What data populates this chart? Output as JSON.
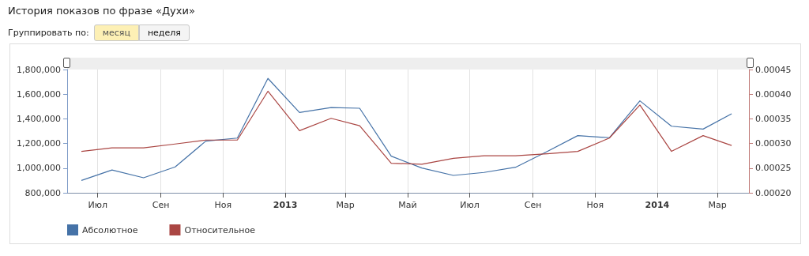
{
  "chart_data": {
    "type": "line",
    "title": "История показов по фразе «Духи»",
    "annotations": [
      "Группировать по:",
      "месяц",
      "неделя"
    ],
    "x": [
      "2012-06-15",
      "2012-07-15",
      "2012-08-15",
      "2012-09-15",
      "2012-10-15",
      "2012-11-15",
      "2012-12-15",
      "2013-01-15",
      "2013-02-15",
      "2013-03-15",
      "2013-04-15",
      "2013-05-15",
      "2013-06-15",
      "2013-07-15",
      "2013-08-15",
      "2013-09-15",
      "2013-10-15",
      "2013-11-15",
      "2013-12-15",
      "2014-01-15",
      "2014-02-15",
      "2014-03-15"
    ],
    "series": [
      {
        "name": "Абсолютное",
        "color": "#4572a7",
        "values": [
          900000,
          985000,
          922000,
          1010000,
          1219000,
          1244000,
          1728000,
          1452000,
          1492000,
          1486000,
          1097000,
          1001000,
          941000,
          965000,
          1007000,
          1135000,
          1264000,
          1247000,
          1546000,
          1340000,
          1317000,
          1441000
        ]
      },
      {
        "name": "Относительное",
        "color": "#aa4643",
        "axis": "y2",
        "values": [
          0.000284,
          0.000291,
          0.000291,
          0.000299,
          0.000307,
          0.000307,
          0.000406,
          0.000326,
          0.000351,
          0.000336,
          0.00026,
          0.000258,
          0.00027,
          0.000275,
          0.000275,
          0.000279,
          0.000284,
          0.000311,
          0.000378,
          0.000284,
          0.000316,
          0.000296
        ]
      }
    ],
    "xlim": [
      "2012-06-01",
      "2014-04-01"
    ],
    "xticks": [
      {
        "value": "2012-07-01",
        "label": "Июл"
      },
      {
        "value": "2012-09-01",
        "label": "Сен"
      },
      {
        "value": "2012-11-01",
        "label": "Ноя"
      },
      {
        "value": "2013-01-01",
        "label": "2013"
      },
      {
        "value": "2013-03-01",
        "label": "Мар"
      },
      {
        "value": "2013-05-01",
        "label": "Май"
      },
      {
        "value": "2013-07-01",
        "label": "Июл"
      },
      {
        "value": "2013-09-01",
        "label": "Сен"
      },
      {
        "value": "2013-11-01",
        "label": "Ноя"
      },
      {
        "value": "2014-01-01",
        "label": "2014"
      },
      {
        "value": "2014-03-01",
        "label": "Мар"
      }
    ],
    "ylim": [
      800000,
      1800000
    ],
    "yticks": [
      {
        "value": 800000,
        "label": "800,000"
      },
      {
        "value": 1000000,
        "label": "1,000,000"
      },
      {
        "value": 1200000,
        "label": "1,200,000"
      },
      {
        "value": 1400000,
        "label": "1,400,000"
      },
      {
        "value": 1600000,
        "label": "1,600,000"
      },
      {
        "value": 1800000,
        "label": "1,800,000"
      }
    ],
    "y2lim": [
      0.0002,
      0.00045
    ],
    "y2ticks": [
      {
        "value": 0.0002,
        "label": "0.00020"
      },
      {
        "value": 0.00025,
        "label": "0.00025"
      },
      {
        "value": 0.0003,
        "label": "0.00030"
      },
      {
        "value": 0.00035,
        "label": "0.00035"
      },
      {
        "value": 0.0004,
        "label": "0.00040"
      },
      {
        "value": 0.00045,
        "label": "0.00045"
      }
    ],
    "grid": "x",
    "legend": "bottom left",
    "marker": "none",
    "line_style": "solid"
  }
}
